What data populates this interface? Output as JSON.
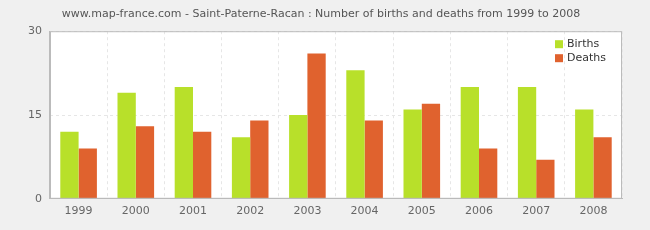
{
  "chart_data": {
    "type": "bar",
    "title": "www.map-france.com - Saint-Paterne-Racan : Number of births and deaths from 1999 to 2008",
    "categories": [
      "1999",
      "2000",
      "2001",
      "2002",
      "2003",
      "2004",
      "2005",
      "2006",
      "2007",
      "2008"
    ],
    "series": [
      {
        "name": "Births",
        "color": "#b8e02a",
        "values": [
          12,
          19,
          20,
          11,
          15,
          23,
          16,
          20,
          20,
          16
        ]
      },
      {
        "name": "Deaths",
        "color": "#e0622e",
        "values": [
          9,
          13,
          12,
          14,
          26,
          14,
          17,
          9,
          7,
          11
        ]
      }
    ],
    "ylim": [
      0,
      30
    ],
    "yticks": [
      0,
      15,
      30
    ],
    "grid": true,
    "legend": "upper right"
  }
}
